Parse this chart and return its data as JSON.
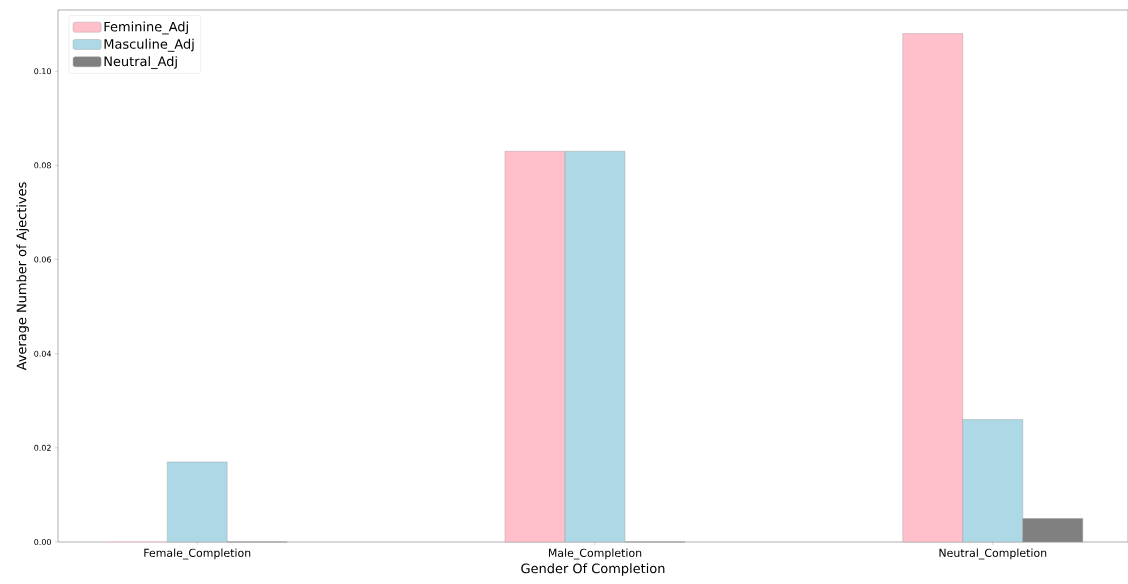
{
  "chart_data": {
    "type": "bar",
    "xlabel": "Gender Of Completion",
    "ylabel": "Average Number of Ajectives",
    "categories": [
      "Female_Completion",
      "Male_Completion",
      "Neutral_Completion"
    ],
    "series": [
      {
        "name": "Feminine_Adj",
        "color": "#ffc0cb",
        "values": [
          0,
          0.083,
          0.108
        ]
      },
      {
        "name": "Masculine_Adj",
        "color": "#add8e6",
        "values": [
          0.017,
          0.083,
          0.026
        ]
      },
      {
        "name": "Neutral_Adj",
        "color": "#808080",
        "values": [
          0,
          0,
          0.005
        ]
      }
    ],
    "ylim": [
      0,
      0.113
    ],
    "yticks": [
      {
        "value": 0,
        "label": "0.00"
      },
      {
        "value": 0.02,
        "label": "0.02"
      },
      {
        "value": 0.04,
        "label": "0.04"
      },
      {
        "value": 0.06,
        "label": "0.06"
      },
      {
        "value": 0.08,
        "label": "0.08"
      },
      {
        "value": 0.1,
        "label": "0.10"
      }
    ],
    "grid": false,
    "legend": "top left"
  }
}
